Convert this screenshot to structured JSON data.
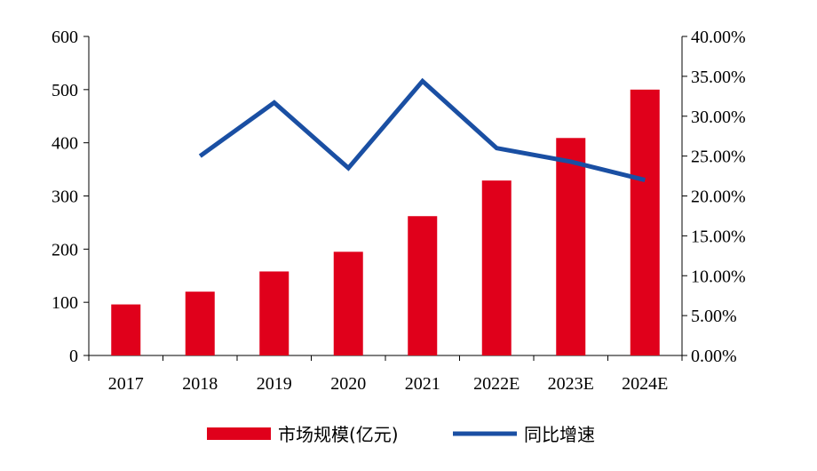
{
  "chart_data": {
    "type": "bar",
    "categories": [
      "2017",
      "2018",
      "2019",
      "2020",
      "2021",
      "2022E",
      "2023E",
      "2024E"
    ],
    "series": [
      {
        "name": "市场规模(亿元)",
        "type": "bar",
        "axis": "left",
        "color": "#e0001b",
        "values": [
          96,
          120,
          158,
          195,
          262,
          329,
          409,
          500
        ]
      },
      {
        "name": "同比增速",
        "type": "line",
        "axis": "right",
        "color": "#1a4fa3",
        "values": [
          null,
          0.25,
          0.317,
          0.235,
          0.344,
          0.26,
          0.243,
          0.22
        ]
      }
    ],
    "y_left": {
      "lim": [
        0,
        600
      ],
      "ticks": [
        "0",
        "100",
        "200",
        "300",
        "400",
        "500",
        "600"
      ]
    },
    "y_right": {
      "lim": [
        0,
        0.4
      ],
      "ticks": [
        "0.00%",
        "5.00%",
        "10.00%",
        "15.00%",
        "20.00%",
        "25.00%",
        "30.00%",
        "35.00%",
        "40.00%"
      ]
    },
    "grid": false,
    "legend": "bottom"
  }
}
